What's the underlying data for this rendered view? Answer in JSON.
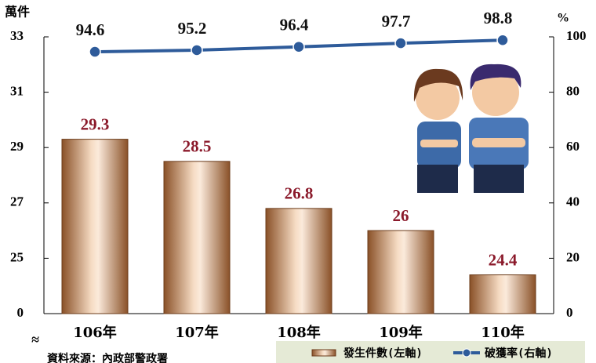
{
  "chart_data": {
    "type": "bar",
    "y_unit": "萬件",
    "y2_unit": "%",
    "categories": [
      "106年",
      "107年",
      "108年",
      "109年",
      "110年"
    ],
    "series": [
      {
        "name": "發生件數(左軸)",
        "type": "bar",
        "color": "#b87a4b",
        "values": [
          29.3,
          28.5,
          26.8,
          26.0,
          24.4
        ],
        "label_color": "#8b1a2b"
      },
      {
        "name": "破獲率(右軸)",
        "type": "line",
        "axis": "y2",
        "color": "#2e5b9a",
        "values": [
          94.6,
          95.2,
          96.4,
          97.7,
          98.8
        ],
        "label_color": "#111111"
      }
    ],
    "ylim": [
      0,
      33
    ],
    "axis_break": [
      0,
      23
    ],
    "yticks": [
      0,
      25,
      27,
      29,
      31,
      33
    ],
    "y2lim": [
      0,
      100
    ],
    "y2ticks": [
      0,
      20,
      40,
      60,
      80,
      100
    ],
    "legend": "bottom-right",
    "source": "資料來源：內政部警政署"
  }
}
